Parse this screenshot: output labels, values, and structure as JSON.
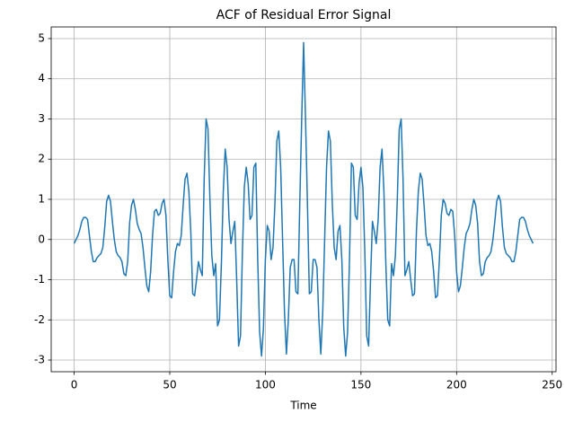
{
  "chart_data": {
    "type": "line",
    "title": "ACF of Residual Error Signal",
    "x_label": "Time",
    "x": [
      0,
      1,
      2,
      3,
      4,
      5,
      6,
      7,
      8,
      9,
      10,
      11,
      12,
      13,
      14,
      15,
      16,
      17,
      18,
      19,
      20,
      21,
      22,
      23,
      24,
      25,
      26,
      27,
      28,
      29,
      30,
      31,
      32,
      33,
      34,
      35,
      36,
      37,
      38,
      39,
      40,
      41,
      42,
      43,
      44,
      45,
      46,
      47,
      48,
      49,
      50,
      51,
      52,
      53,
      54,
      55,
      56,
      57,
      58,
      59,
      60,
      61,
      62,
      63,
      64,
      65,
      66,
      67,
      68,
      69,
      70,
      71,
      72,
      73,
      74,
      75,
      76,
      77,
      78,
      79,
      80,
      81,
      82,
      83,
      84,
      85,
      86,
      87,
      88,
      89,
      90,
      91,
      92,
      93,
      94,
      95,
      96,
      97,
      98,
      99,
      100,
      101,
      102,
      103,
      104,
      105,
      106,
      107,
      108,
      109,
      110,
      111,
      112,
      113,
      114,
      115,
      116,
      117,
      118,
      119,
      120,
      121,
      122,
      123,
      124,
      125,
      126,
      127,
      128,
      129,
      130,
      131,
      132,
      133,
      134,
      135,
      136,
      137,
      138,
      139,
      140,
      141,
      142,
      143,
      144,
      145,
      146,
      147,
      148,
      149,
      150,
      151,
      152,
      153,
      154,
      155,
      156,
      157,
      158,
      159,
      160,
      161,
      162,
      163,
      164,
      165,
      166,
      167,
      168,
      169,
      170,
      171,
      172,
      173,
      174,
      175,
      176,
      177,
      178,
      179,
      180,
      181,
      182,
      183,
      184,
      185,
      186,
      187,
      188,
      189,
      190,
      191,
      192,
      193,
      194,
      195,
      196,
      197,
      198,
      199,
      200,
      201,
      202,
      203,
      204,
      205,
      206,
      207,
      208,
      209,
      210,
      211,
      212,
      213,
      214,
      215,
      216,
      217,
      218,
      219,
      220,
      221,
      222,
      223,
      224,
      225,
      226,
      227,
      228,
      229,
      230,
      231,
      232,
      233,
      234,
      235,
      236,
      237,
      238,
      239,
      240
    ],
    "values": [
      -0.1,
      0.0,
      0.1,
      0.25,
      0.45,
      0.55,
      0.55,
      0.5,
      0.1,
      -0.3,
      -0.55,
      -0.55,
      -0.45,
      -0.4,
      -0.35,
      -0.2,
      0.3,
      0.95,
      1.1,
      0.95,
      0.45,
      0.0,
      -0.3,
      -0.4,
      -0.45,
      -0.55,
      -0.85,
      -0.9,
      -0.55,
      0.4,
      0.85,
      1.0,
      0.75,
      0.4,
      0.25,
      0.15,
      -0.2,
      -0.7,
      -1.15,
      -1.3,
      -0.8,
      0.1,
      0.7,
      0.75,
      0.6,
      0.65,
      0.9,
      1.0,
      0.6,
      -0.5,
      -1.4,
      -1.45,
      -0.8,
      -0.3,
      -0.1,
      -0.15,
      0.1,
      0.85,
      1.5,
      1.65,
      1.2,
      0.2,
      -1.35,
      -1.4,
      -1.0,
      -0.55,
      -0.75,
      -0.9,
      1.5,
      3.0,
      2.75,
      1.0,
      -0.4,
      -0.9,
      -0.6,
      -2.15,
      -2.0,
      -0.6,
      1.2,
      2.25,
      1.8,
      0.5,
      -0.1,
      0.2,
      0.45,
      -1.0,
      -2.65,
      -2.4,
      -0.3,
      1.3,
      1.8,
      1.4,
      0.5,
      0.6,
      1.8,
      1.9,
      -0.5,
      -2.3,
      -2.9,
      -2.2,
      -0.5,
      0.35,
      0.2,
      -0.5,
      -0.2,
      0.9,
      2.45,
      2.7,
      1.8,
      0.0,
      -1.8,
      -2.85,
      -2.0,
      -0.7,
      -0.5,
      -0.5,
      -1.3,
      -1.35,
      0.9,
      3.0,
      4.9,
      3.0,
      0.9,
      -1.35,
      -1.3,
      -0.5,
      -0.5,
      -0.7,
      -2.0,
      -2.85,
      -1.8,
      0.0,
      1.8,
      2.7,
      2.45,
      0.9,
      -0.2,
      -0.5,
      0.2,
      0.35,
      -0.5,
      -2.2,
      -2.9,
      -2.3,
      -0.5,
      1.9,
      1.8,
      0.6,
      0.5,
      1.4,
      1.8,
      1.3,
      -0.3,
      -2.4,
      -2.65,
      -1.0,
      0.45,
      0.2,
      -0.1,
      0.5,
      1.8,
      2.25,
      1.2,
      -0.6,
      -2.0,
      -2.15,
      -0.6,
      -0.9,
      -0.4,
      1.0,
      2.75,
      3.0,
      1.5,
      -0.9,
      -0.75,
      -0.55,
      -1.0,
      -1.4,
      -1.35,
      0.2,
      1.2,
      1.65,
      1.5,
      0.85,
      0.1,
      -0.15,
      -0.1,
      -0.3,
      -0.8,
      -1.45,
      -1.4,
      -0.5,
      0.6,
      1.0,
      0.9,
      0.65,
      0.6,
      0.75,
      0.7,
      0.1,
      -0.8,
      -1.3,
      -1.15,
      -0.7,
      -0.2,
      0.15,
      0.25,
      0.4,
      0.75,
      1.0,
      0.85,
      0.4,
      -0.55,
      -0.9,
      -0.85,
      -0.55,
      -0.45,
      -0.4,
      -0.3,
      0.0,
      0.45,
      0.95,
      1.1,
      0.95,
      0.3,
      -0.2,
      -0.35,
      -0.4,
      -0.45,
      -0.55,
      -0.55,
      -0.3,
      0.1,
      0.5,
      0.55,
      0.55,
      0.45,
      0.25,
      0.1,
      0.0,
      -0.1
    ],
    "color": "#1f77b4",
    "xlim": [
      -12,
      252
    ],
    "xticks": [
      0,
      50,
      100,
      150,
      200,
      250
    ],
    "ylim": [
      -3.29,
      5.29
    ],
    "yticks": [
      -3,
      -2,
      -1,
      0,
      1,
      2,
      3,
      4,
      5
    ],
    "grid": true
  }
}
